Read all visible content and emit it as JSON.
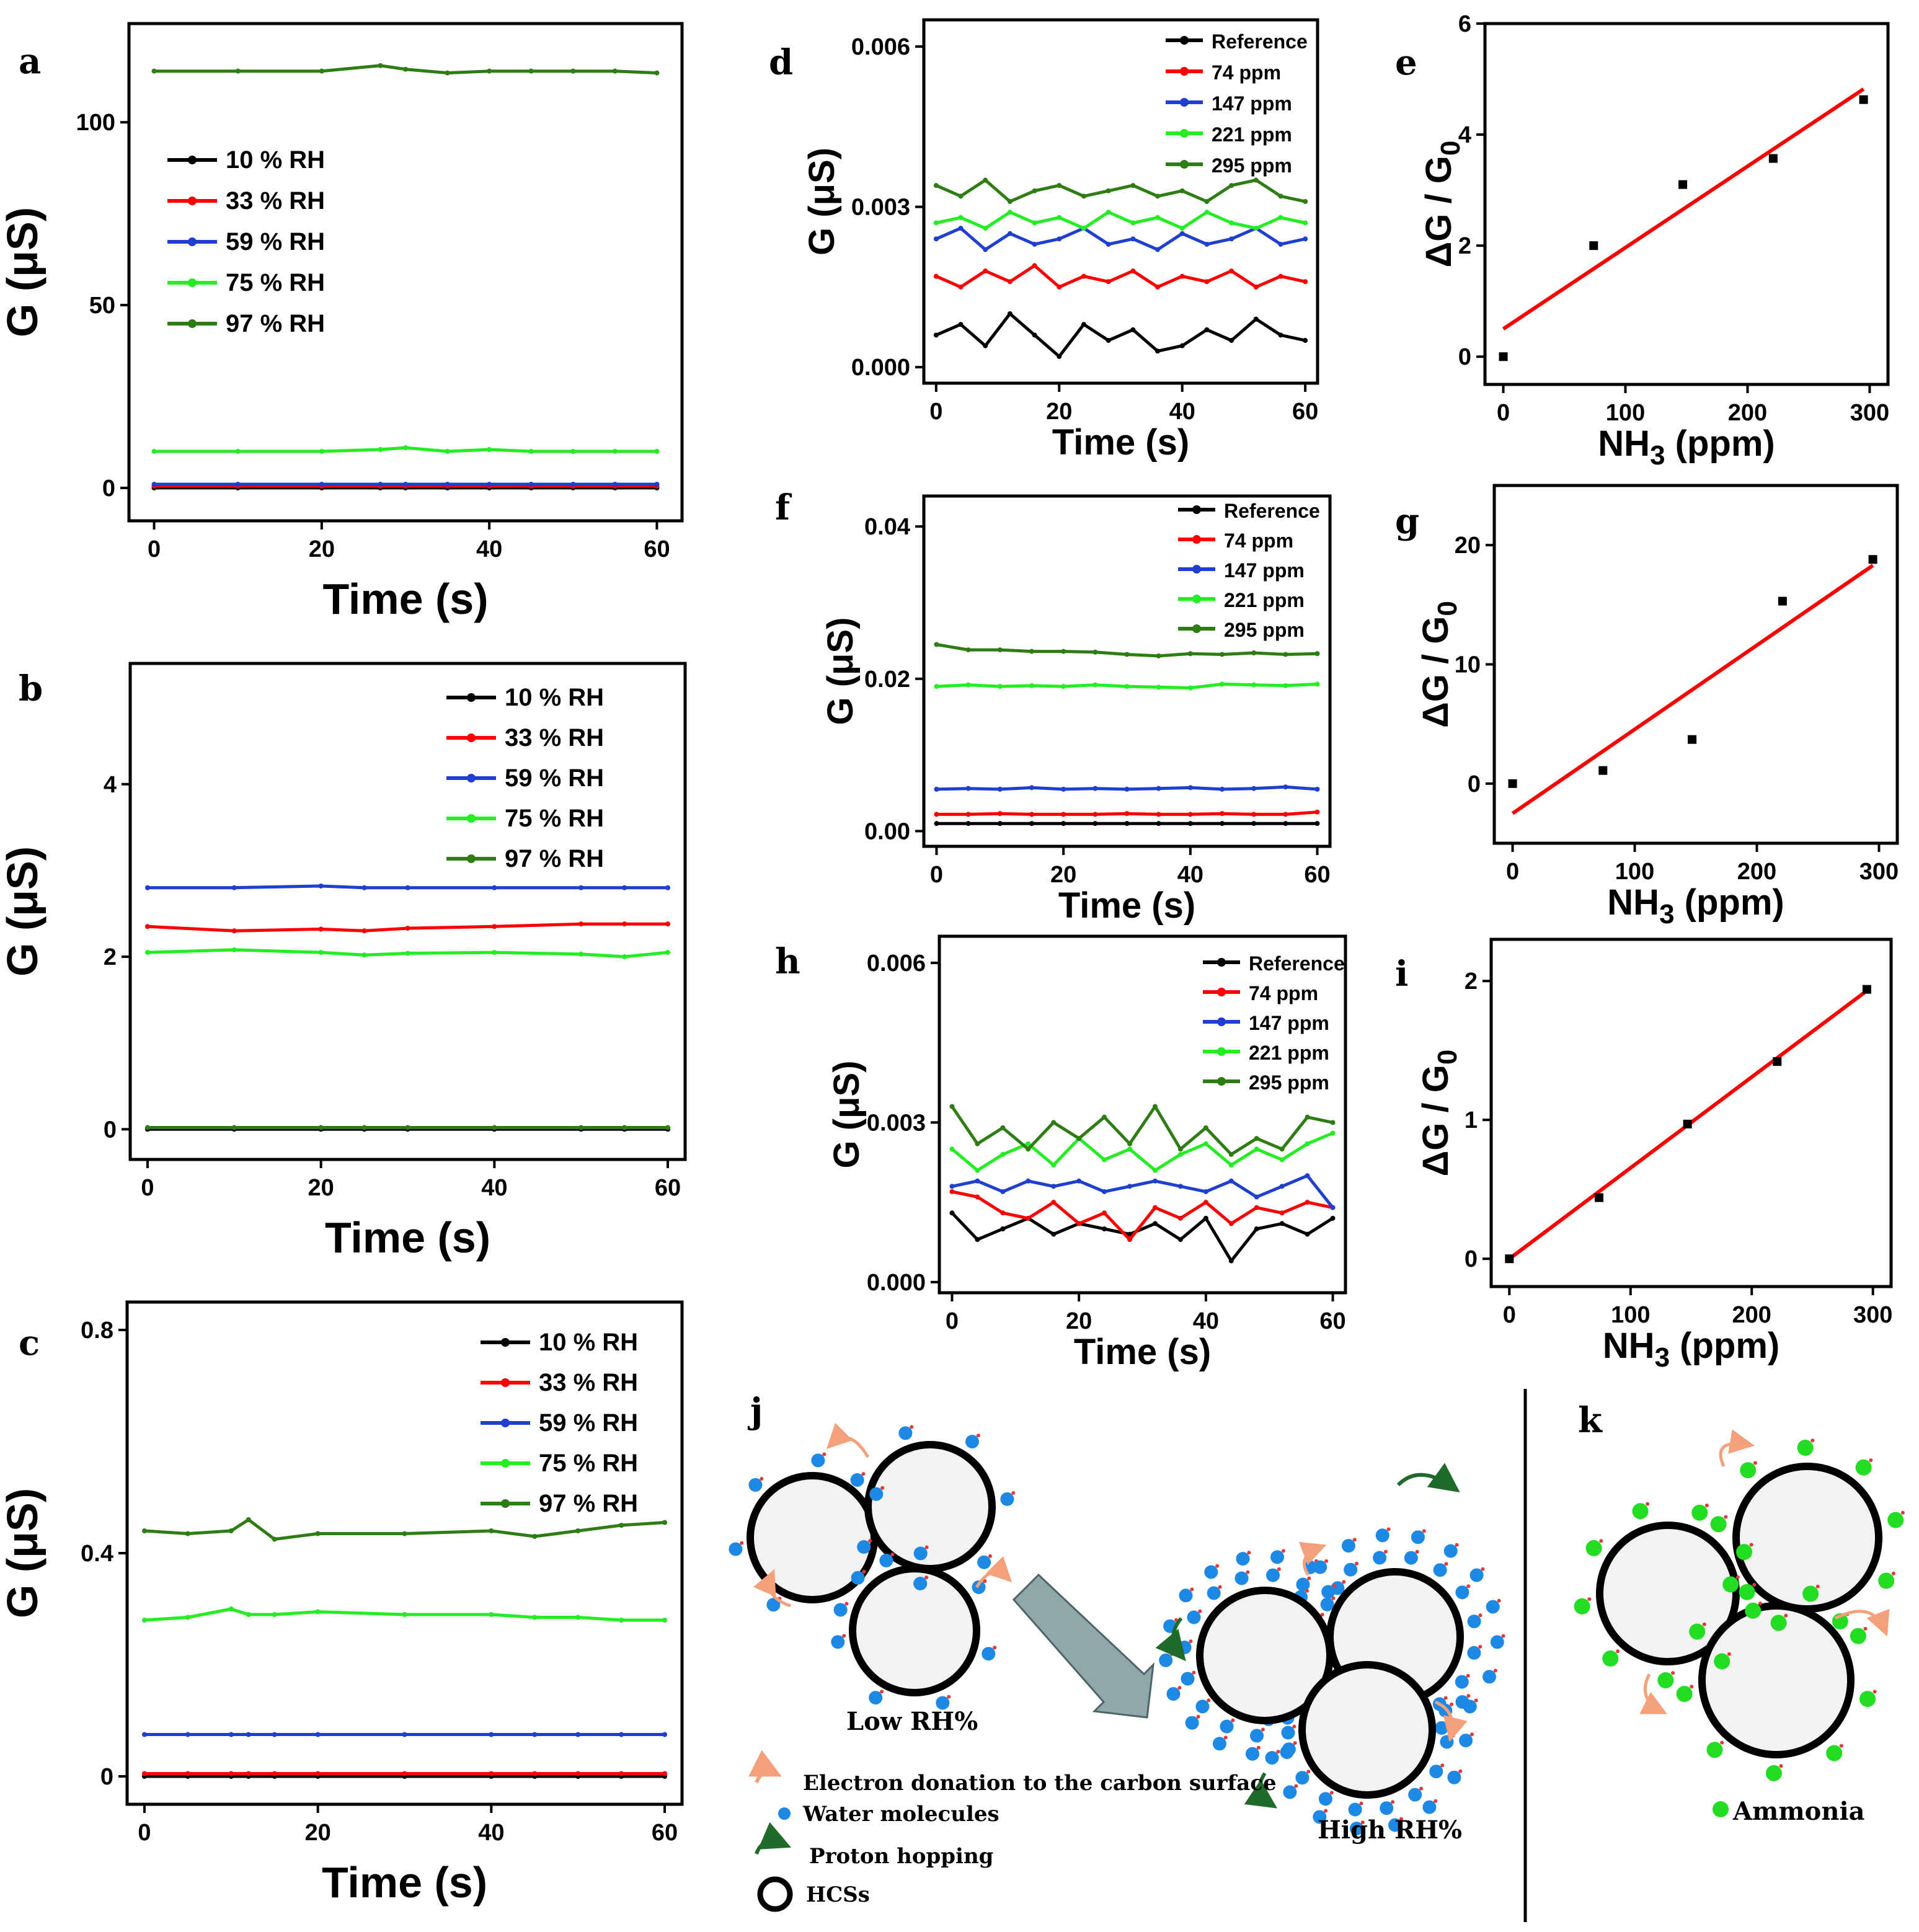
{
  "chart_data": [
    {
      "id": "a",
      "type": "line",
      "panel_label": "a",
      "xlabel": "Time (s)",
      "ylabel": "G (μS)",
      "xlim": [
        -3,
        63
      ],
      "ylim": [
        -9,
        127
      ],
      "xticks": [
        0,
        20,
        40,
        60
      ],
      "yticks": [
        0,
        50,
        100
      ],
      "x": [
        0,
        10,
        20,
        27,
        30,
        35,
        40,
        45,
        50,
        55,
        60
      ],
      "series": [
        {
          "name": "10 % RH",
          "color": "#000000",
          "values": [
            0.0,
            0.0,
            0.0,
            0.0,
            0.0,
            0.0,
            0.0,
            0.0,
            0.0,
            0.0,
            0.0
          ]
        },
        {
          "name": "33 % RH",
          "color": "#ff0000",
          "values": [
            0.5,
            0.5,
            0.5,
            0.5,
            0.5,
            0.5,
            0.5,
            0.5,
            0.5,
            0.5,
            0.5
          ]
        },
        {
          "name": "59 % RH",
          "color": "#1f3fd0",
          "values": [
            1.0,
            1.0,
            1.0,
            1.0,
            1.0,
            1.0,
            1.0,
            1.0,
            1.0,
            1.0,
            1.0
          ]
        },
        {
          "name": "75 % RH",
          "color": "#22ee22",
          "values": [
            10,
            10,
            10,
            10.5,
            11,
            10,
            10.5,
            10,
            10,
            10,
            10
          ]
        },
        {
          "name": "97 % RH",
          "color": "#2e7d14",
          "values": [
            114,
            114,
            114,
            115.5,
            114.5,
            113.5,
            114,
            114,
            114,
            114,
            113.5
          ]
        }
      ]
    },
    {
      "id": "b",
      "type": "line",
      "panel_label": "b",
      "xlabel": "Time (s)",
      "ylabel": "G (μS)",
      "xlim": [
        -2,
        62
      ],
      "ylim": [
        -0.35,
        5.4
      ],
      "xticks": [
        0,
        20,
        40,
        60
      ],
      "yticks": [
        0,
        2,
        4
      ],
      "x": [
        0,
        10,
        20,
        25,
        30,
        40,
        50,
        55,
        60
      ],
      "series": [
        {
          "name": "10 % RH",
          "color": "#000000",
          "values": [
            0.0,
            0.0,
            0.0,
            0.0,
            0.0,
            0.0,
            0.0,
            0.0,
            0.0
          ]
        },
        {
          "name": "33 % RH",
          "color": "#ff0000",
          "values": [
            2.35,
            2.3,
            2.32,
            2.3,
            2.33,
            2.35,
            2.38,
            2.38,
            2.38
          ]
        },
        {
          "name": "59 % RH",
          "color": "#1f3fd0",
          "values": [
            2.8,
            2.8,
            2.82,
            2.8,
            2.8,
            2.8,
            2.8,
            2.8,
            2.8
          ]
        },
        {
          "name": "75 % RH",
          "color": "#22ee22",
          "values": [
            2.05,
            2.08,
            2.05,
            2.02,
            2.04,
            2.05,
            2.03,
            2.0,
            2.05
          ]
        },
        {
          "name": "97 % RH",
          "color": "#2e7d14",
          "values": [
            0.02,
            0.02,
            0.02,
            0.02,
            0.02,
            0.02,
            0.02,
            0.02,
            0.02
          ]
        }
      ]
    },
    {
      "id": "c",
      "type": "line",
      "panel_label": "c",
      "xlabel": "Time (s)",
      "ylabel": "G (μS)",
      "xlim": [
        -2,
        62
      ],
      "ylim": [
        -0.05,
        0.85
      ],
      "xticks": [
        0,
        20,
        40,
        60
      ],
      "yticks": [
        0.0,
        0.4,
        0.8
      ],
      "x": [
        0,
        5,
        10,
        12,
        15,
        20,
        30,
        40,
        45,
        50,
        55,
        60
      ],
      "series": [
        {
          "name": "10 % RH",
          "color": "#000000",
          "values": [
            0.0,
            0.0,
            0.0,
            0.0,
            0.0,
            0.0,
            0.0,
            0.0,
            0.0,
            0.0,
            0.0,
            0.0
          ]
        },
        {
          "name": "33 % RH",
          "color": "#ff0000",
          "values": [
            0.005,
            0.005,
            0.005,
            0.005,
            0.005,
            0.005,
            0.005,
            0.005,
            0.005,
            0.005,
            0.005,
            0.005
          ]
        },
        {
          "name": "59 % RH",
          "color": "#1f3fd0",
          "values": [
            0.075,
            0.075,
            0.075,
            0.075,
            0.075,
            0.075,
            0.075,
            0.075,
            0.075,
            0.075,
            0.075,
            0.075
          ]
        },
        {
          "name": "75 % RH",
          "color": "#22ee22",
          "values": [
            0.28,
            0.285,
            0.3,
            0.29,
            0.29,
            0.295,
            0.29,
            0.29,
            0.285,
            0.285,
            0.28,
            0.28
          ]
        },
        {
          "name": "97 % RH",
          "color": "#2e7d14",
          "values": [
            0.44,
            0.435,
            0.44,
            0.46,
            0.425,
            0.435,
            0.435,
            0.44,
            0.43,
            0.44,
            0.45,
            0.455
          ]
        }
      ]
    },
    {
      "id": "d",
      "type": "line",
      "panel_label": "d",
      "xlabel": "Time (s)",
      "ylabel": "G (μS)",
      "xlim": [
        -2,
        62
      ],
      "ylim": [
        -0.0003,
        0.0065
      ],
      "xticks": [
        0,
        20,
        40,
        60
      ],
      "yticks": [
        0.0,
        0.003,
        0.006
      ],
      "tick_labels_y": [
        "0.000",
        "0.003",
        "0.006"
      ],
      "x": [
        0,
        4,
        8,
        12,
        16,
        20,
        24,
        28,
        32,
        36,
        40,
        44,
        48,
        52,
        56,
        60
      ],
      "series": [
        {
          "name": "Reference",
          "color": "#000000",
          "values": [
            0.0006,
            0.0008,
            0.0004,
            0.001,
            0.0006,
            0.0002,
            0.0008,
            0.0005,
            0.0007,
            0.0003,
            0.0004,
            0.0007,
            0.0005,
            0.0009,
            0.0006,
            0.0005
          ]
        },
        {
          "name": "74 ppm",
          "color": "#ff0000",
          "values": [
            0.0017,
            0.0015,
            0.0018,
            0.0016,
            0.0019,
            0.0015,
            0.0017,
            0.0016,
            0.0018,
            0.0015,
            0.0017,
            0.0016,
            0.0018,
            0.0015,
            0.0017,
            0.0016
          ]
        },
        {
          "name": "147 ppm",
          "color": "#1f3fd0",
          "values": [
            0.0024,
            0.0026,
            0.0022,
            0.0025,
            0.0023,
            0.0024,
            0.0026,
            0.0023,
            0.0024,
            0.0022,
            0.0025,
            0.0023,
            0.0024,
            0.0026,
            0.0023,
            0.0024
          ]
        },
        {
          "name": "221 ppm",
          "color": "#22ee22",
          "values": [
            0.0027,
            0.0028,
            0.0026,
            0.0029,
            0.0027,
            0.0028,
            0.0026,
            0.0029,
            0.0027,
            0.0028,
            0.0026,
            0.0029,
            0.0027,
            0.0026,
            0.0028,
            0.0027
          ]
        },
        {
          "name": "295 ppm",
          "color": "#2e7d14",
          "values": [
            0.0034,
            0.0032,
            0.0035,
            0.0031,
            0.0033,
            0.0034,
            0.0032,
            0.0033,
            0.0034,
            0.0032,
            0.0033,
            0.0031,
            0.0034,
            0.0035,
            0.0032,
            0.0031
          ]
        }
      ]
    },
    {
      "id": "e",
      "type": "scatter",
      "panel_label": "e",
      "xlabel": "NH3 (ppm)",
      "ylabel": "ΔG / G0",
      "xlim": [
        -15,
        315
      ],
      "ylim": [
        -0.5,
        6
      ],
      "xticks": [
        0,
        100,
        200,
        300
      ],
      "yticks": [
        0,
        2,
        4,
        6
      ],
      "x": [
        0,
        74,
        147,
        221,
        295
      ],
      "values": [
        0.0,
        2.0,
        3.1,
        3.57,
        4.63
      ],
      "fit": {
        "x": [
          0,
          295
        ],
        "y": [
          0.5,
          4.82
        ],
        "color": "#ff0000"
      }
    },
    {
      "id": "f",
      "type": "line",
      "panel_label": "f",
      "xlabel": "Time (s)",
      "ylabel": "G (μS)",
      "xlim": [
        -2,
        62
      ],
      "ylim": [
        -0.002,
        0.044
      ],
      "xticks": [
        0,
        20,
        40,
        60
      ],
      "yticks": [
        0.0,
        0.02,
        0.04
      ],
      "tick_labels_y": [
        "0.00",
        "0.02",
        "0.04"
      ],
      "x": [
        0,
        5,
        10,
        15,
        20,
        25,
        30,
        35,
        40,
        45,
        50,
        55,
        60
      ],
      "series": [
        {
          "name": "Reference",
          "color": "#000000",
          "values": [
            0.001,
            0.001,
            0.001,
            0.001,
            0.001,
            0.001,
            0.001,
            0.001,
            0.001,
            0.001,
            0.001,
            0.001,
            0.001
          ]
        },
        {
          "name": "74 ppm",
          "color": "#ff0000",
          "values": [
            0.0022,
            0.0022,
            0.0023,
            0.0022,
            0.0022,
            0.0022,
            0.0023,
            0.0022,
            0.0022,
            0.0023,
            0.0022,
            0.0022,
            0.0025
          ]
        },
        {
          "name": "147 ppm",
          "color": "#1f3fd0",
          "values": [
            0.0055,
            0.0056,
            0.0055,
            0.0057,
            0.0055,
            0.0056,
            0.0055,
            0.0056,
            0.0057,
            0.0055,
            0.0056,
            0.0058,
            0.0055
          ]
        },
        {
          "name": "221 ppm",
          "color": "#22ee22",
          "values": [
            0.019,
            0.0192,
            0.019,
            0.0191,
            0.019,
            0.0192,
            0.019,
            0.0189,
            0.0188,
            0.0193,
            0.0192,
            0.0191,
            0.0193
          ]
        },
        {
          "name": "295 ppm",
          "color": "#2e7d14",
          "values": [
            0.0245,
            0.0238,
            0.0238,
            0.0236,
            0.0236,
            0.0235,
            0.0232,
            0.023,
            0.0233,
            0.0232,
            0.0234,
            0.0232,
            0.0233
          ]
        }
      ]
    },
    {
      "id": "g",
      "type": "scatter",
      "panel_label": "g",
      "xlabel": "NH3 (ppm)",
      "ylabel": "ΔG / G0",
      "xlim": [
        -15,
        315
      ],
      "ylim": [
        -5,
        25
      ],
      "xticks": [
        0,
        100,
        200,
        300
      ],
      "yticks": [
        0,
        10,
        20
      ],
      "x": [
        0,
        74,
        147,
        221,
        295
      ],
      "values": [
        0.0,
        1.1,
        3.7,
        15.3,
        18.8
      ],
      "fit": {
        "x": [
          0,
          295
        ],
        "y": [
          -2.5,
          18.3
        ],
        "color": "#ff0000"
      }
    },
    {
      "id": "h",
      "type": "line",
      "panel_label": "h",
      "xlabel": "Time (s)",
      "ylabel": "G (μS)",
      "xlim": [
        -2,
        62
      ],
      "ylim": [
        -0.0002,
        0.0065
      ],
      "xticks": [
        0,
        20,
        40,
        60
      ],
      "yticks": [
        0.0,
        0.003,
        0.006
      ],
      "tick_labels_y": [
        "0.000",
        "0.003",
        "0.006"
      ],
      "x": [
        0,
        4,
        8,
        12,
        16,
        20,
        24,
        28,
        32,
        36,
        40,
        44,
        48,
        52,
        56,
        60
      ],
      "series": [
        {
          "name": "Reference",
          "color": "#000000",
          "values": [
            0.0013,
            0.0008,
            0.001,
            0.0012,
            0.0009,
            0.0011,
            0.001,
            0.0009,
            0.0011,
            0.0008,
            0.0012,
            0.0004,
            0.001,
            0.0011,
            0.0009,
            0.0012
          ]
        },
        {
          "name": "74 ppm",
          "color": "#ff0000",
          "values": [
            0.0017,
            0.0016,
            0.0013,
            0.0012,
            0.0015,
            0.0011,
            0.0013,
            0.0008,
            0.0014,
            0.0012,
            0.0015,
            0.0011,
            0.0014,
            0.0013,
            0.0015,
            0.0014
          ]
        },
        {
          "name": "147 ppm",
          "color": "#1f3fd0",
          "values": [
            0.0018,
            0.0019,
            0.0017,
            0.0019,
            0.0018,
            0.0019,
            0.0017,
            0.0018,
            0.0019,
            0.0018,
            0.0017,
            0.0019,
            0.0016,
            0.0018,
            0.002,
            0.0014
          ]
        },
        {
          "name": "221 ppm",
          "color": "#22ee22",
          "values": [
            0.0025,
            0.0021,
            0.0024,
            0.0026,
            0.0022,
            0.0027,
            0.0023,
            0.0025,
            0.0021,
            0.0024,
            0.0026,
            0.0022,
            0.0025,
            0.0023,
            0.0026,
            0.0028
          ]
        },
        {
          "name": "295 ppm",
          "color": "#2e7d14",
          "values": [
            0.0033,
            0.0026,
            0.0029,
            0.0025,
            0.003,
            0.0027,
            0.0031,
            0.0026,
            0.0033,
            0.0025,
            0.0029,
            0.0024,
            0.0027,
            0.0025,
            0.0031,
            0.003
          ]
        }
      ]
    },
    {
      "id": "i",
      "type": "scatter",
      "panel_label": "i",
      "xlabel": "NH3 (ppm)",
      "ylabel": "ΔG / G0",
      "xlim": [
        -15,
        315
      ],
      "ylim": [
        -0.2,
        2.3
      ],
      "xticks": [
        0,
        100,
        200,
        300
      ],
      "yticks": [
        0,
        1,
        2
      ],
      "x": [
        0,
        74,
        147,
        221,
        295
      ],
      "values": [
        0.0,
        0.44,
        0.97,
        1.42,
        1.94
      ],
      "fit": {
        "x": [
          0,
          295
        ],
        "y": [
          0.0,
          1.93
        ],
        "color": "#ff0000"
      }
    }
  ],
  "schematic": {
    "panel_j_label": "j",
    "panel_k_label": "k",
    "low_rh_label": "Low RH%",
    "high_rh_label": "High RH%",
    "ammonia_label": "Ammonia",
    "legend": {
      "electron_donation": "Electron donation to the carbon surface",
      "water_molecules": "Water molecules",
      "proton_hopping": "Proton hopping",
      "hcss": "HCSs"
    },
    "colors": {
      "water": "#1e88e5",
      "ammonia": "#22dd22",
      "arrow": "#f4a07a",
      "hop": "#1f6b2a",
      "big_arrow": "#8fa8aa"
    }
  }
}
